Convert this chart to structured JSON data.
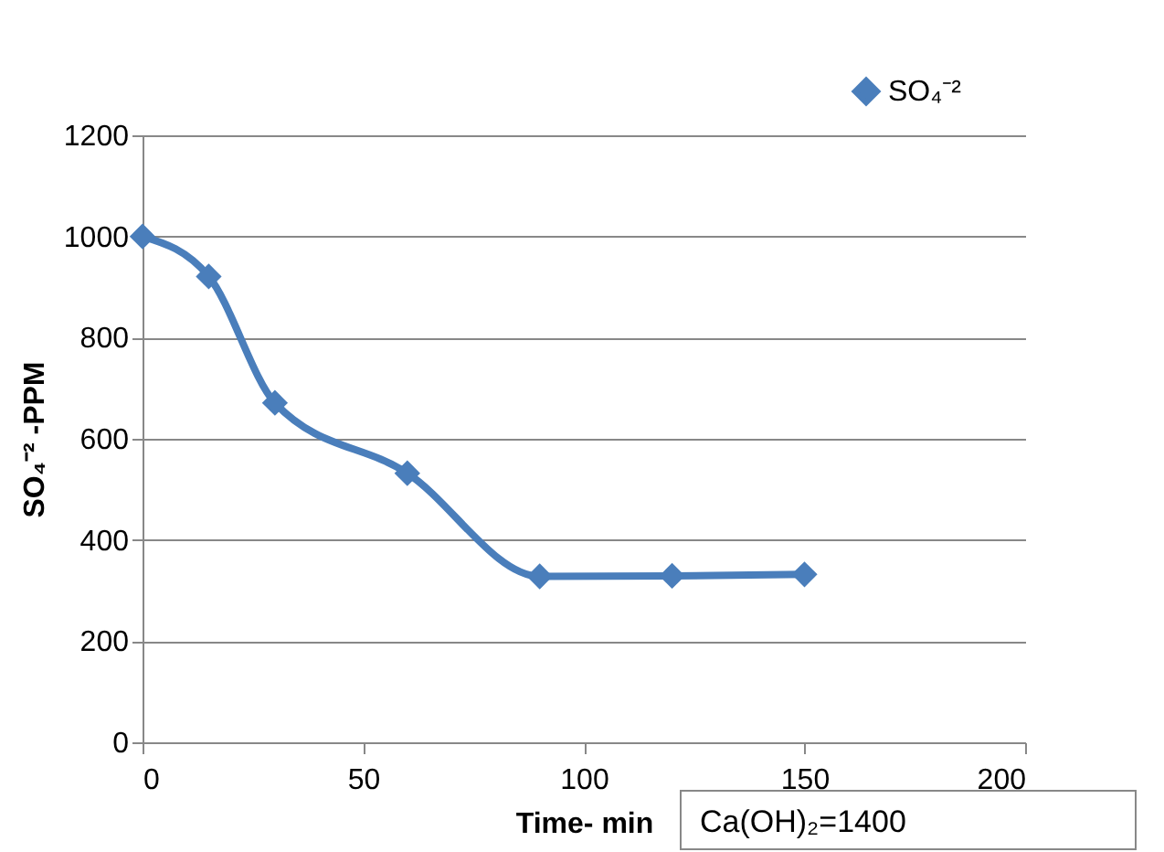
{
  "chart_data": {
    "type": "line",
    "xlabel": "Time- min",
    "ylabel": "SO₄⁻² -PPM",
    "x": [
      0,
      15,
      30,
      60,
      90,
      120,
      150
    ],
    "series": [
      {
        "name": "SO₄⁻²",
        "color": "#4a7ebb",
        "values": [
          1000,
          921,
          671,
          532,
          328,
          329,
          332
        ]
      }
    ],
    "xlim": [
      0,
      200
    ],
    "xticks": [
      0,
      50,
      100,
      150,
      200
    ],
    "ylim": [
      0,
      1200
    ],
    "yticks": [
      0,
      200,
      400,
      600,
      800,
      1000,
      1200
    ],
    "grid": "y",
    "legend": "top right",
    "marker": "diamond",
    "line_style": "solid",
    "annotations": [
      "Ca(OH)₂=1400"
    ]
  }
}
